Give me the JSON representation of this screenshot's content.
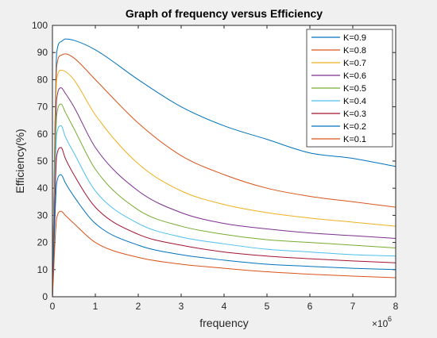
{
  "chart_data": {
    "type": "line",
    "title": "Graph of frequency versus Efficiency",
    "xlabel": "frequency",
    "ylabel": "Efficiency(%)",
    "x_exponent_label": "×10",
    "x_exponent_power": "6",
    "xlim": [
      0,
      8000000
    ],
    "ylim": [
      0,
      100
    ],
    "x_ticks": [
      0,
      1000000,
      2000000,
      3000000,
      4000000,
      5000000,
      6000000,
      7000000,
      8000000
    ],
    "x_tick_labels": [
      "0",
      "1",
      "2",
      "3",
      "4",
      "5",
      "6",
      "7",
      "8"
    ],
    "y_ticks": [
      0,
      10,
      20,
      30,
      40,
      50,
      60,
      70,
      80,
      90,
      100
    ],
    "y_tick_labels": [
      "0",
      "10",
      "20",
      "30",
      "40",
      "50",
      "60",
      "70",
      "80",
      "90",
      "100"
    ],
    "grid": false,
    "legend_position": "top-right",
    "x": [
      0,
      100000,
      200000,
      300000,
      500000,
      1000000,
      2000000,
      3000000,
      4000000,
      5000000,
      6000000,
      7000000,
      8000000
    ],
    "series": [
      {
        "name": "K=0.9",
        "color": "#0072BD",
        "values": [
          0,
          90,
          94,
          95,
          94.5,
          91,
          80,
          70,
          63,
          58,
          53,
          51,
          48
        ]
      },
      {
        "name": "K=0.8",
        "color": "#D95319",
        "values": [
          0,
          85,
          89,
          89.5,
          88,
          80,
          64,
          52,
          45,
          40,
          37,
          35,
          33
        ]
      },
      {
        "name": "K=0.7",
        "color": "#EDB120",
        "values": [
          0,
          80,
          83.5,
          83,
          80,
          67,
          49,
          39,
          34,
          31,
          29,
          27.5,
          26
        ]
      },
      {
        "name": "K=0.6",
        "color": "#7E2F8E",
        "values": [
          0,
          73,
          77,
          75,
          70,
          55,
          39,
          31,
          27,
          25,
          23.5,
          22.5,
          21.5
        ]
      },
      {
        "name": "K=0.5",
        "color": "#77AC30",
        "values": [
          0,
          67,
          71,
          68,
          62,
          47,
          32,
          26,
          23,
          21,
          20,
          19,
          18
        ]
      },
      {
        "name": "K=0.4",
        "color": "#4DBEEE",
        "values": [
          0,
          60,
          63,
          59,
          53,
          39,
          27,
          22,
          19.5,
          17.5,
          16.5,
          15.5,
          15
        ]
      },
      {
        "name": "K=0.3",
        "color": "#A2142F",
        "values": [
          0,
          52,
          55,
          51,
          45,
          33,
          23,
          19,
          16.5,
          15,
          14,
          13.2,
          12.5
        ]
      },
      {
        "name": "K=0.2",
        "color": "#0072BD",
        "values": [
          0,
          42,
          45,
          42,
          37,
          27,
          19,
          15.5,
          13.5,
          12,
          11.2,
          10.5,
          10
        ]
      },
      {
        "name": "K=0.1",
        "color": "#D95319",
        "values": [
          0,
          29,
          31.5,
          30,
          27,
          20,
          14.5,
          12,
          10.5,
          9.2,
          8.3,
          7.6,
          7
        ]
      }
    ]
  }
}
